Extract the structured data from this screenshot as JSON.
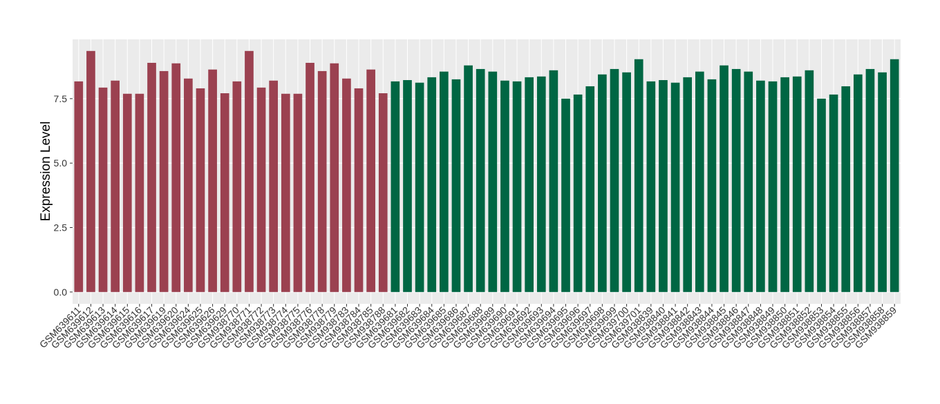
{
  "chart_data": {
    "type": "bar",
    "y_label": "Expression Level",
    "categories": [
      "GSM639611",
      "GSM639612",
      "GSM639613",
      "GSM639614",
      "GSM639615",
      "GSM639616",
      "GSM639617",
      "GSM639619",
      "GSM639620",
      "GSM639624",
      "GSM639625",
      "GSM639626",
      "GSM639629",
      "GSM938770",
      "GSM938771",
      "GSM938772",
      "GSM938773",
      "GSM938774",
      "GSM938775",
      "GSM938776",
      "GSM938778",
      "GSM938779",
      "GSM938783",
      "GSM938784",
      "GSM938785",
      "GSM938788",
      "GSM639681",
      "GSM639682",
      "GSM639683",
      "GSM639684",
      "GSM639685",
      "GSM639686",
      "GSM639687",
      "GSM639688",
      "GSM639689",
      "GSM639690",
      "GSM639691",
      "GSM639692",
      "GSM639693",
      "GSM639694",
      "GSM639695",
      "GSM639696",
      "GSM639697",
      "GSM639698",
      "GSM639699",
      "GSM639700",
      "GSM639701",
      "GSM938839",
      "GSM938840",
      "GSM938841",
      "GSM938842",
      "GSM938843",
      "GSM938844",
      "GSM938845",
      "GSM938846",
      "GSM938847",
      "GSM938848",
      "GSM938849",
      "GSM938850",
      "GSM938851",
      "GSM938852",
      "GSM938853",
      "GSM938854",
      "GSM938855",
      "GSM938856",
      "GSM938857",
      "GSM938858",
      "GSM938859"
    ],
    "values": [
      8.17,
      9.35,
      7.93,
      8.2,
      7.69,
      7.69,
      8.89,
      8.57,
      8.87,
      8.28,
      7.9,
      8.63,
      7.71,
      8.17,
      9.35,
      7.93,
      8.2,
      7.69,
      7.69,
      8.89,
      8.57,
      8.87,
      8.28,
      7.9,
      8.63,
      7.71,
      8.17,
      8.22,
      8.12,
      8.33,
      8.55,
      8.25,
      8.79,
      8.65,
      8.55,
      8.2,
      8.17,
      8.33,
      8.36,
      8.6,
      7.5,
      7.66,
      7.98,
      8.44,
      8.65,
      8.52,
      9.03,
      8.17,
      8.22,
      8.12,
      8.33,
      8.55,
      8.25,
      8.79,
      8.65,
      8.55,
      8.2,
      8.17,
      8.33,
      8.36,
      8.6,
      7.5,
      7.66,
      7.98,
      8.44,
      8.65,
      8.52,
      9.03
    ],
    "colors": [
      "#9b4150",
      "#9b4150",
      "#9b4150",
      "#9b4150",
      "#9b4150",
      "#9b4150",
      "#9b4150",
      "#9b4150",
      "#9b4150",
      "#9b4150",
      "#9b4150",
      "#9b4150",
      "#9b4150",
      "#9b4150",
      "#9b4150",
      "#9b4150",
      "#9b4150",
      "#9b4150",
      "#9b4150",
      "#9b4150",
      "#9b4150",
      "#9b4150",
      "#9b4150",
      "#9b4150",
      "#9b4150",
      "#9b4150",
      "#006643",
      "#006643",
      "#006643",
      "#006643",
      "#006643",
      "#006643",
      "#006643",
      "#006643",
      "#006643",
      "#006643",
      "#006643",
      "#006643",
      "#006643",
      "#006643",
      "#006643",
      "#006643",
      "#006643",
      "#006643",
      "#006643",
      "#006643",
      "#006643",
      "#006643",
      "#006643",
      "#006643",
      "#006643",
      "#006643",
      "#006643",
      "#006643",
      "#006643",
      "#006643",
      "#006643",
      "#006643",
      "#006643",
      "#006643",
      "#006643",
      "#006643",
      "#006643",
      "#006643",
      "#006643",
      "#006643",
      "#006643",
      "#006643"
    ],
    "ylim": [
      -0.46,
      9.8
    ],
    "yticks": [
      {
        "value": 0,
        "label": "0.0"
      },
      {
        "value": 2.5,
        "label": "2.5"
      },
      {
        "value": 5,
        "label": "5.0"
      },
      {
        "value": 7.5,
        "label": "7.5"
      }
    ],
    "grid": true
  }
}
